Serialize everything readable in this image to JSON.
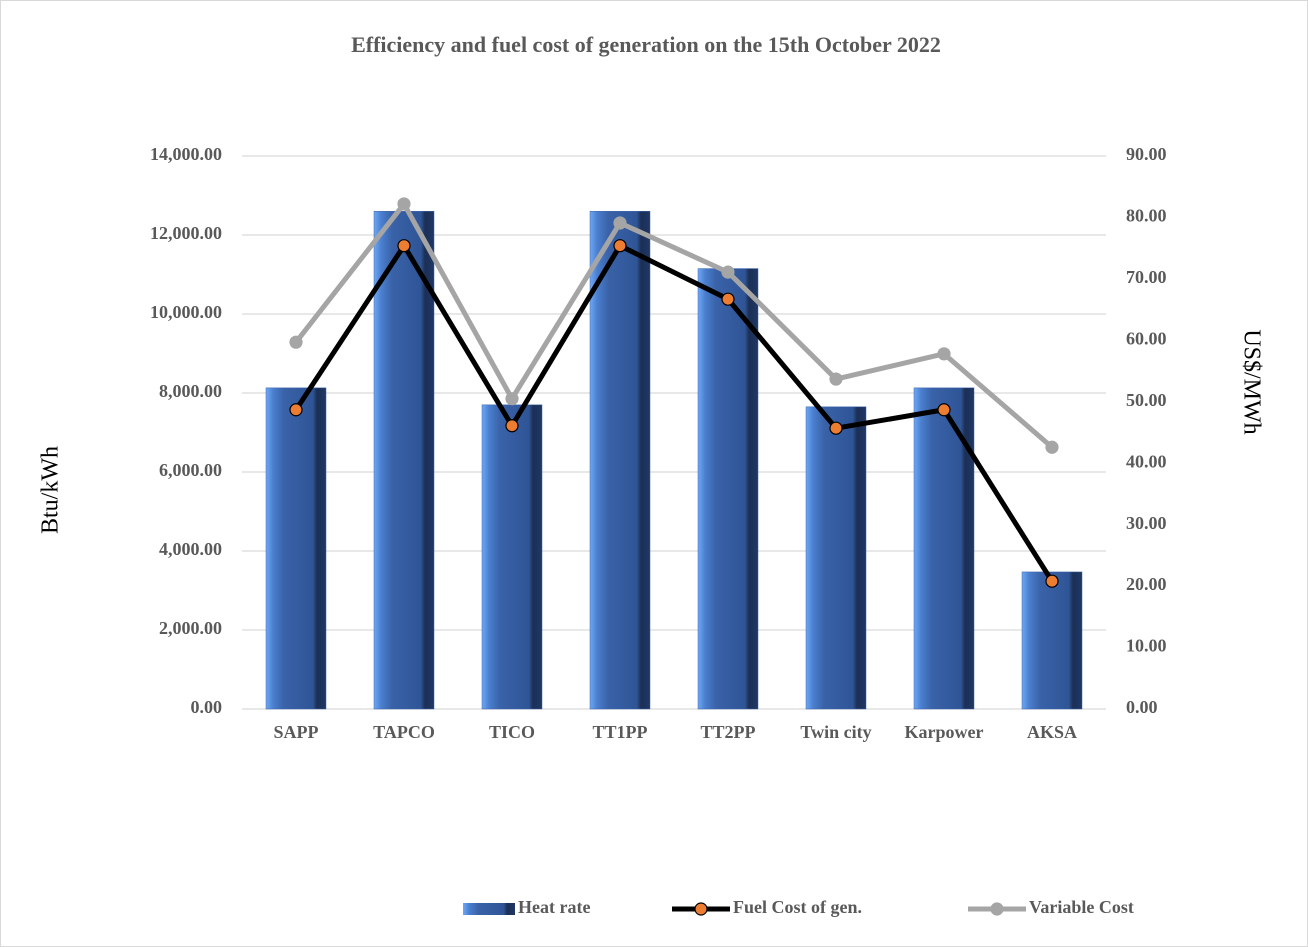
{
  "chart_data": {
    "type": "bar-line",
    "title": "Efficiency and fuel cost of generation on the 15th October 2022",
    "ylabel": "Btu/kWh",
    "y2label": "US$/MWh",
    "categories": [
      "SAPP",
      "TAPCO",
      "TICO",
      "TT1PP",
      "TT2PP",
      "Twin city",
      "Karpower",
      "AKSA"
    ],
    "series": [
      {
        "name": "Heat rate",
        "type": "bar",
        "color": "#3a62a8",
        "values": [
          8130,
          12600,
          7700,
          12600,
          11150,
          7650,
          8130,
          3470
        ]
      },
      {
        "name": "Fuel Cost of gen.",
        "type": "line",
        "axis": "y2",
        "color": "#000000",
        "marker_color": "#ed7d31",
        "values": [
          48.7,
          75.4,
          46.1,
          75.4,
          66.7,
          45.7,
          48.7,
          20.8
        ]
      },
      {
        "name": "Variable Cost",
        "type": "line",
        "axis": "y2",
        "color": "#a5a5a5",
        "marker_color": "#a5a5a5",
        "values": [
          59.7,
          82.2,
          50.5,
          79.1,
          71.1,
          53.7,
          57.8,
          42.6
        ]
      }
    ],
    "ylim": [
      0,
      14000
    ],
    "yticks": [
      {
        "value": 0,
        "label": "0.00"
      },
      {
        "value": 2000,
        "label": "2,000.00"
      },
      {
        "value": 4000,
        "label": "4,000.00"
      },
      {
        "value": 6000,
        "label": "6,000.00"
      },
      {
        "value": 8000,
        "label": "8,000.00"
      },
      {
        "value": 10000,
        "label": "10,000.00"
      },
      {
        "value": 12000,
        "label": "12,000.00"
      },
      {
        "value": 14000,
        "label": "14,000.00"
      }
    ],
    "y2lim": [
      0,
      90
    ],
    "y2ticks": [
      {
        "value": 0,
        "label": "0.00"
      },
      {
        "value": 10,
        "label": "10.00"
      },
      {
        "value": 20,
        "label": "20.00"
      },
      {
        "value": 30,
        "label": "30.00"
      },
      {
        "value": 40,
        "label": "40.00"
      },
      {
        "value": 50,
        "label": "50.00"
      },
      {
        "value": 60,
        "label": "60.00"
      },
      {
        "value": 70,
        "label": "70.00"
      },
      {
        "value": 80,
        "label": "80.00"
      },
      {
        "value": 90,
        "label": "90.00"
      }
    ],
    "grid": true,
    "legend": "bottom"
  }
}
